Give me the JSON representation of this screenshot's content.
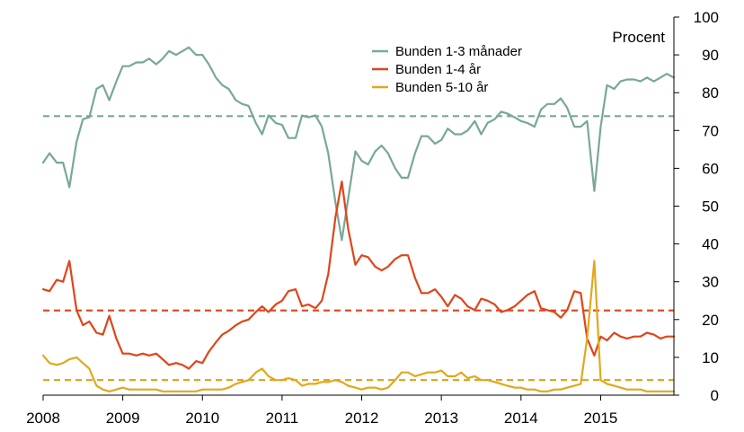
{
  "chart_data": {
    "type": "line",
    "unit_label": "Procent",
    "x_ticks": [
      "2008",
      "2009",
      "2010",
      "2011",
      "2012",
      "2013",
      "2014",
      "2015"
    ],
    "xlim": [
      2008.0,
      2015.92
    ],
    "y_ticks": [
      "0",
      "10",
      "20",
      "30",
      "40",
      "50",
      "60",
      "70",
      "80",
      "90",
      "100"
    ],
    "ylim": [
      0,
      100
    ],
    "y_axis_side": "right",
    "grid": false,
    "legend_position": "top-right",
    "series": [
      {
        "name": "Bunden 1-3 månader",
        "color": "#78a898",
        "mean": 73.8,
        "x": [
          2008.0,
          2008.08,
          2008.17,
          2008.25,
          2008.33,
          2008.42,
          2008.5,
          2008.58,
          2008.67,
          2008.75,
          2008.83,
          2008.92,
          2009.0,
          2009.08,
          2009.17,
          2009.25,
          2009.33,
          2009.42,
          2009.5,
          2009.58,
          2009.67,
          2009.75,
          2009.83,
          2009.92,
          2010.0,
          2010.08,
          2010.17,
          2010.25,
          2010.33,
          2010.42,
          2010.5,
          2010.58,
          2010.67,
          2010.75,
          2010.83,
          2010.92,
          2011.0,
          2011.08,
          2011.17,
          2011.25,
          2011.33,
          2011.42,
          2011.5,
          2011.58,
          2011.67,
          2011.75,
          2011.83,
          2011.92,
          2012.0,
          2012.08,
          2012.17,
          2012.25,
          2012.33,
          2012.42,
          2012.5,
          2012.58,
          2012.67,
          2012.75,
          2012.83,
          2012.92,
          2013.0,
          2013.08,
          2013.17,
          2013.25,
          2013.33,
          2013.42,
          2013.5,
          2013.58,
          2013.67,
          2013.75,
          2013.83,
          2013.92,
          2014.0,
          2014.08,
          2014.17,
          2014.25,
          2014.33,
          2014.42,
          2014.5,
          2014.58,
          2014.67,
          2014.75,
          2014.83,
          2014.92,
          2015.0,
          2015.08,
          2015.17,
          2015.25,
          2015.33,
          2015.42,
          2015.5,
          2015.58,
          2015.67,
          2015.75,
          2015.83,
          2015.92
        ],
        "values": [
          61.5,
          64,
          61.5,
          61.5,
          55,
          67,
          73,
          73.5,
          81,
          82,
          78,
          83,
          87,
          87,
          88,
          88,
          89,
          87.5,
          89,
          91,
          90,
          91,
          92,
          90,
          90,
          87.5,
          84,
          82,
          81,
          78,
          77,
          76.5,
          72,
          69,
          74,
          72,
          71.5,
          68,
          68,
          74,
          73.5,
          74,
          71,
          64,
          51,
          41,
          52,
          64.5,
          62,
          61,
          64.5,
          66,
          64,
          60,
          57.5,
          57.5,
          64,
          68.5,
          68.5,
          66.5,
          67.5,
          70.5,
          69,
          69,
          70,
          72.5,
          69,
          72,
          73,
          75,
          74.5,
          73.5,
          72.5,
          72,
          71,
          75.5,
          77,
          77,
          78.5,
          76,
          71,
          71,
          72.5,
          54,
          71,
          82,
          81,
          83,
          83.5,
          83.5,
          83,
          84,
          83,
          84,
          85,
          84
        ]
      },
      {
        "name": "Bunden 1-4 år",
        "color": "#e0441a",
        "mean": 22.4,
        "x": [
          2008.0,
          2008.08,
          2008.17,
          2008.25,
          2008.33,
          2008.42,
          2008.5,
          2008.58,
          2008.67,
          2008.75,
          2008.83,
          2008.92,
          2009.0,
          2009.08,
          2009.17,
          2009.25,
          2009.33,
          2009.42,
          2009.5,
          2009.58,
          2009.67,
          2009.75,
          2009.83,
          2009.92,
          2010.0,
          2010.08,
          2010.17,
          2010.25,
          2010.33,
          2010.42,
          2010.5,
          2010.58,
          2010.67,
          2010.75,
          2010.83,
          2010.92,
          2011.0,
          2011.08,
          2011.17,
          2011.25,
          2011.33,
          2011.42,
          2011.5,
          2011.58,
          2011.67,
          2011.75,
          2011.83,
          2011.92,
          2012.0,
          2012.08,
          2012.17,
          2012.25,
          2012.33,
          2012.42,
          2012.5,
          2012.58,
          2012.67,
          2012.75,
          2012.83,
          2012.92,
          2013.0,
          2013.08,
          2013.17,
          2013.25,
          2013.33,
          2013.42,
          2013.5,
          2013.58,
          2013.67,
          2013.75,
          2013.83,
          2013.92,
          2014.0,
          2014.08,
          2014.17,
          2014.25,
          2014.33,
          2014.42,
          2014.5,
          2014.58,
          2014.67,
          2014.75,
          2014.83,
          2014.92,
          2015.0,
          2015.08,
          2015.17,
          2015.25,
          2015.33,
          2015.42,
          2015.5,
          2015.58,
          2015.67,
          2015.75,
          2015.83,
          2015.92
        ],
        "values": [
          28,
          27.5,
          30.5,
          30,
          35.5,
          22.5,
          18.5,
          19.5,
          16.5,
          16,
          21,
          15,
          11,
          11,
          10.5,
          11,
          10.5,
          11,
          9.5,
          8,
          8.5,
          8,
          7,
          9,
          8.5,
          11.5,
          14,
          16,
          17,
          18.5,
          19.5,
          20,
          22,
          23.5,
          22,
          24,
          25,
          27.5,
          28,
          23.5,
          24,
          23,
          25,
          32,
          47,
          56.5,
          44,
          34.5,
          37,
          36.5,
          34,
          33,
          34,
          36,
          37,
          37,
          31,
          27,
          27,
          28,
          26,
          23.5,
          26.5,
          25.5,
          23.5,
          22.5,
          25.5,
          25,
          24,
          22,
          22.5,
          23.5,
          25,
          26.5,
          27.5,
          23,
          22.5,
          22,
          20.5,
          22.5,
          27.5,
          27,
          15,
          10.5,
          15.5,
          14.5,
          16.5,
          15.5,
          15,
          15.5,
          15.5,
          16.5,
          16,
          15,
          15.5,
          15.5
        ]
      },
      {
        "name": "Bunden 5-10 år",
        "color": "#e0a81e",
        "mean": 4.0,
        "x": [
          2008.0,
          2008.08,
          2008.17,
          2008.25,
          2008.33,
          2008.42,
          2008.5,
          2008.58,
          2008.67,
          2008.75,
          2008.83,
          2008.92,
          2009.0,
          2009.08,
          2009.17,
          2009.25,
          2009.33,
          2009.42,
          2009.5,
          2009.58,
          2009.67,
          2009.75,
          2009.83,
          2009.92,
          2010.0,
          2010.08,
          2010.17,
          2010.25,
          2010.33,
          2010.42,
          2010.5,
          2010.58,
          2010.67,
          2010.75,
          2010.83,
          2010.92,
          2011.0,
          2011.08,
          2011.17,
          2011.25,
          2011.33,
          2011.42,
          2011.5,
          2011.58,
          2011.67,
          2011.75,
          2011.83,
          2011.92,
          2012.0,
          2012.08,
          2012.17,
          2012.25,
          2012.33,
          2012.42,
          2012.5,
          2012.58,
          2012.67,
          2012.75,
          2012.83,
          2012.92,
          2013.0,
          2013.08,
          2013.17,
          2013.25,
          2013.33,
          2013.42,
          2013.5,
          2013.58,
          2013.67,
          2013.75,
          2013.83,
          2013.92,
          2014.0,
          2014.08,
          2014.17,
          2014.25,
          2014.33,
          2014.42,
          2014.5,
          2014.58,
          2014.67,
          2014.75,
          2014.83,
          2014.92,
          2015.0,
          2015.08,
          2015.17,
          2015.25,
          2015.33,
          2015.42,
          2015.5,
          2015.58,
          2015.67,
          2015.75,
          2015.83,
          2015.92
        ],
        "values": [
          10.5,
          8.5,
          8,
          8.5,
          9.5,
          10,
          8.5,
          7,
          2.5,
          1.5,
          1,
          1.5,
          2,
          1.5,
          1.5,
          1.5,
          1.5,
          1.5,
          1,
          1,
          1,
          1,
          1,
          1,
          1.5,
          1.5,
          1.5,
          1.5,
          2,
          3,
          3.5,
          4,
          6,
          7,
          5,
          4,
          4,
          4.5,
          4,
          2.5,
          3,
          3,
          3.5,
          3.5,
          4,
          3.5,
          2.5,
          2,
          1.5,
          2,
          2,
          1.5,
          2,
          4,
          6,
          6,
          5,
          5.5,
          6,
          6,
          6.5,
          5,
          5,
          6,
          4.5,
          5,
          4,
          4,
          3.5,
          3,
          2.5,
          2,
          2,
          1.5,
          1.5,
          1,
          1,
          1.5,
          1.5,
          2,
          2.5,
          3,
          15,
          35.5,
          4,
          3,
          2.5,
          2,
          1.5,
          1.5,
          1.5,
          1,
          1,
          1,
          1,
          1
        ]
      }
    ]
  }
}
